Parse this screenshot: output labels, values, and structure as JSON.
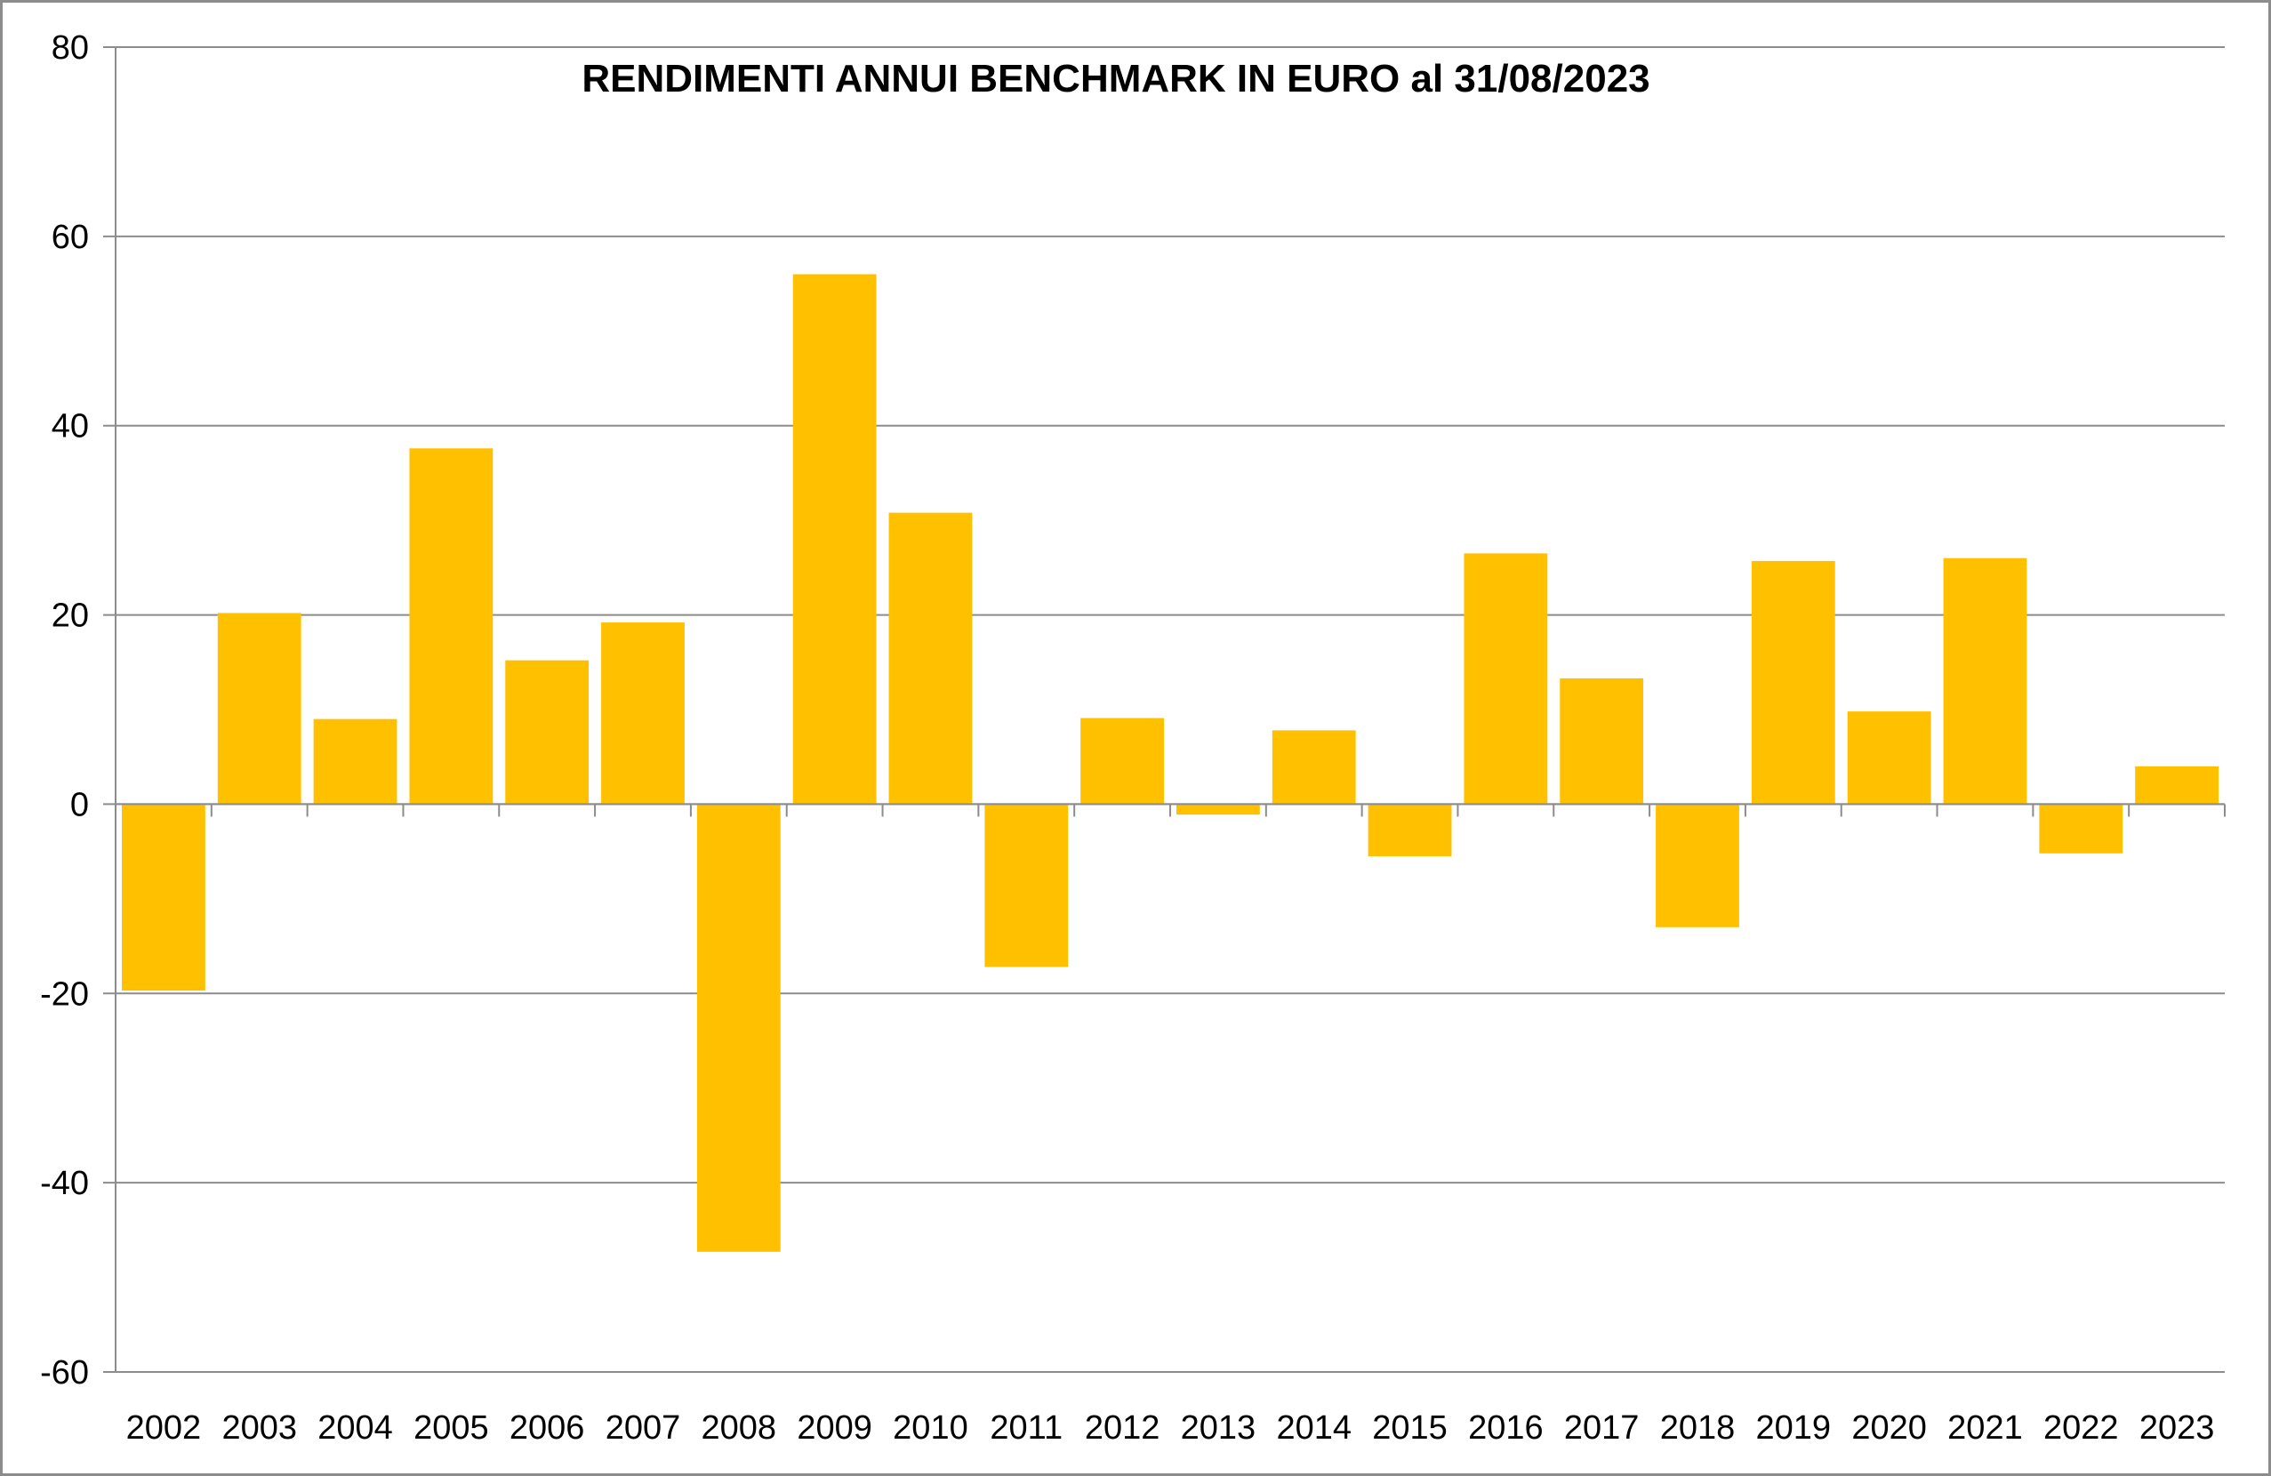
{
  "chart_data": {
    "type": "bar",
    "title": "RENDIMENTI ANNUI BENCHMARK IN EURO al 31/08/2023",
    "xlabel": "",
    "ylabel": "",
    "ylim": [
      -60,
      80
    ],
    "yticks": [
      "80",
      "60",
      "40",
      "20",
      "0",
      "-20",
      "-40",
      "-60"
    ],
    "ytick_values": [
      80,
      60,
      40,
      20,
      0,
      -20,
      -40,
      -60
    ],
    "grid": true,
    "legend": "none",
    "bar_color": "#FFC000",
    "gridline_color": "#8c8c8c",
    "categories": [
      "2002",
      "2003",
      "2004",
      "2005",
      "2006",
      "2007",
      "2008",
      "2009",
      "2010",
      "2011",
      "2012",
      "2013",
      "2014",
      "2015",
      "2016",
      "2017",
      "2018",
      "2019",
      "2020",
      "2021",
      "2022",
      "2023"
    ],
    "values": [
      -19.7,
      20.2,
      9.0,
      37.6,
      15.2,
      19.2,
      -47.3,
      56.0,
      30.8,
      -17.2,
      9.1,
      -1.1,
      7.8,
      -5.5,
      26.5,
      13.3,
      -13.0,
      25.7,
      9.8,
      26.0,
      -5.2,
      4.0
    ]
  }
}
